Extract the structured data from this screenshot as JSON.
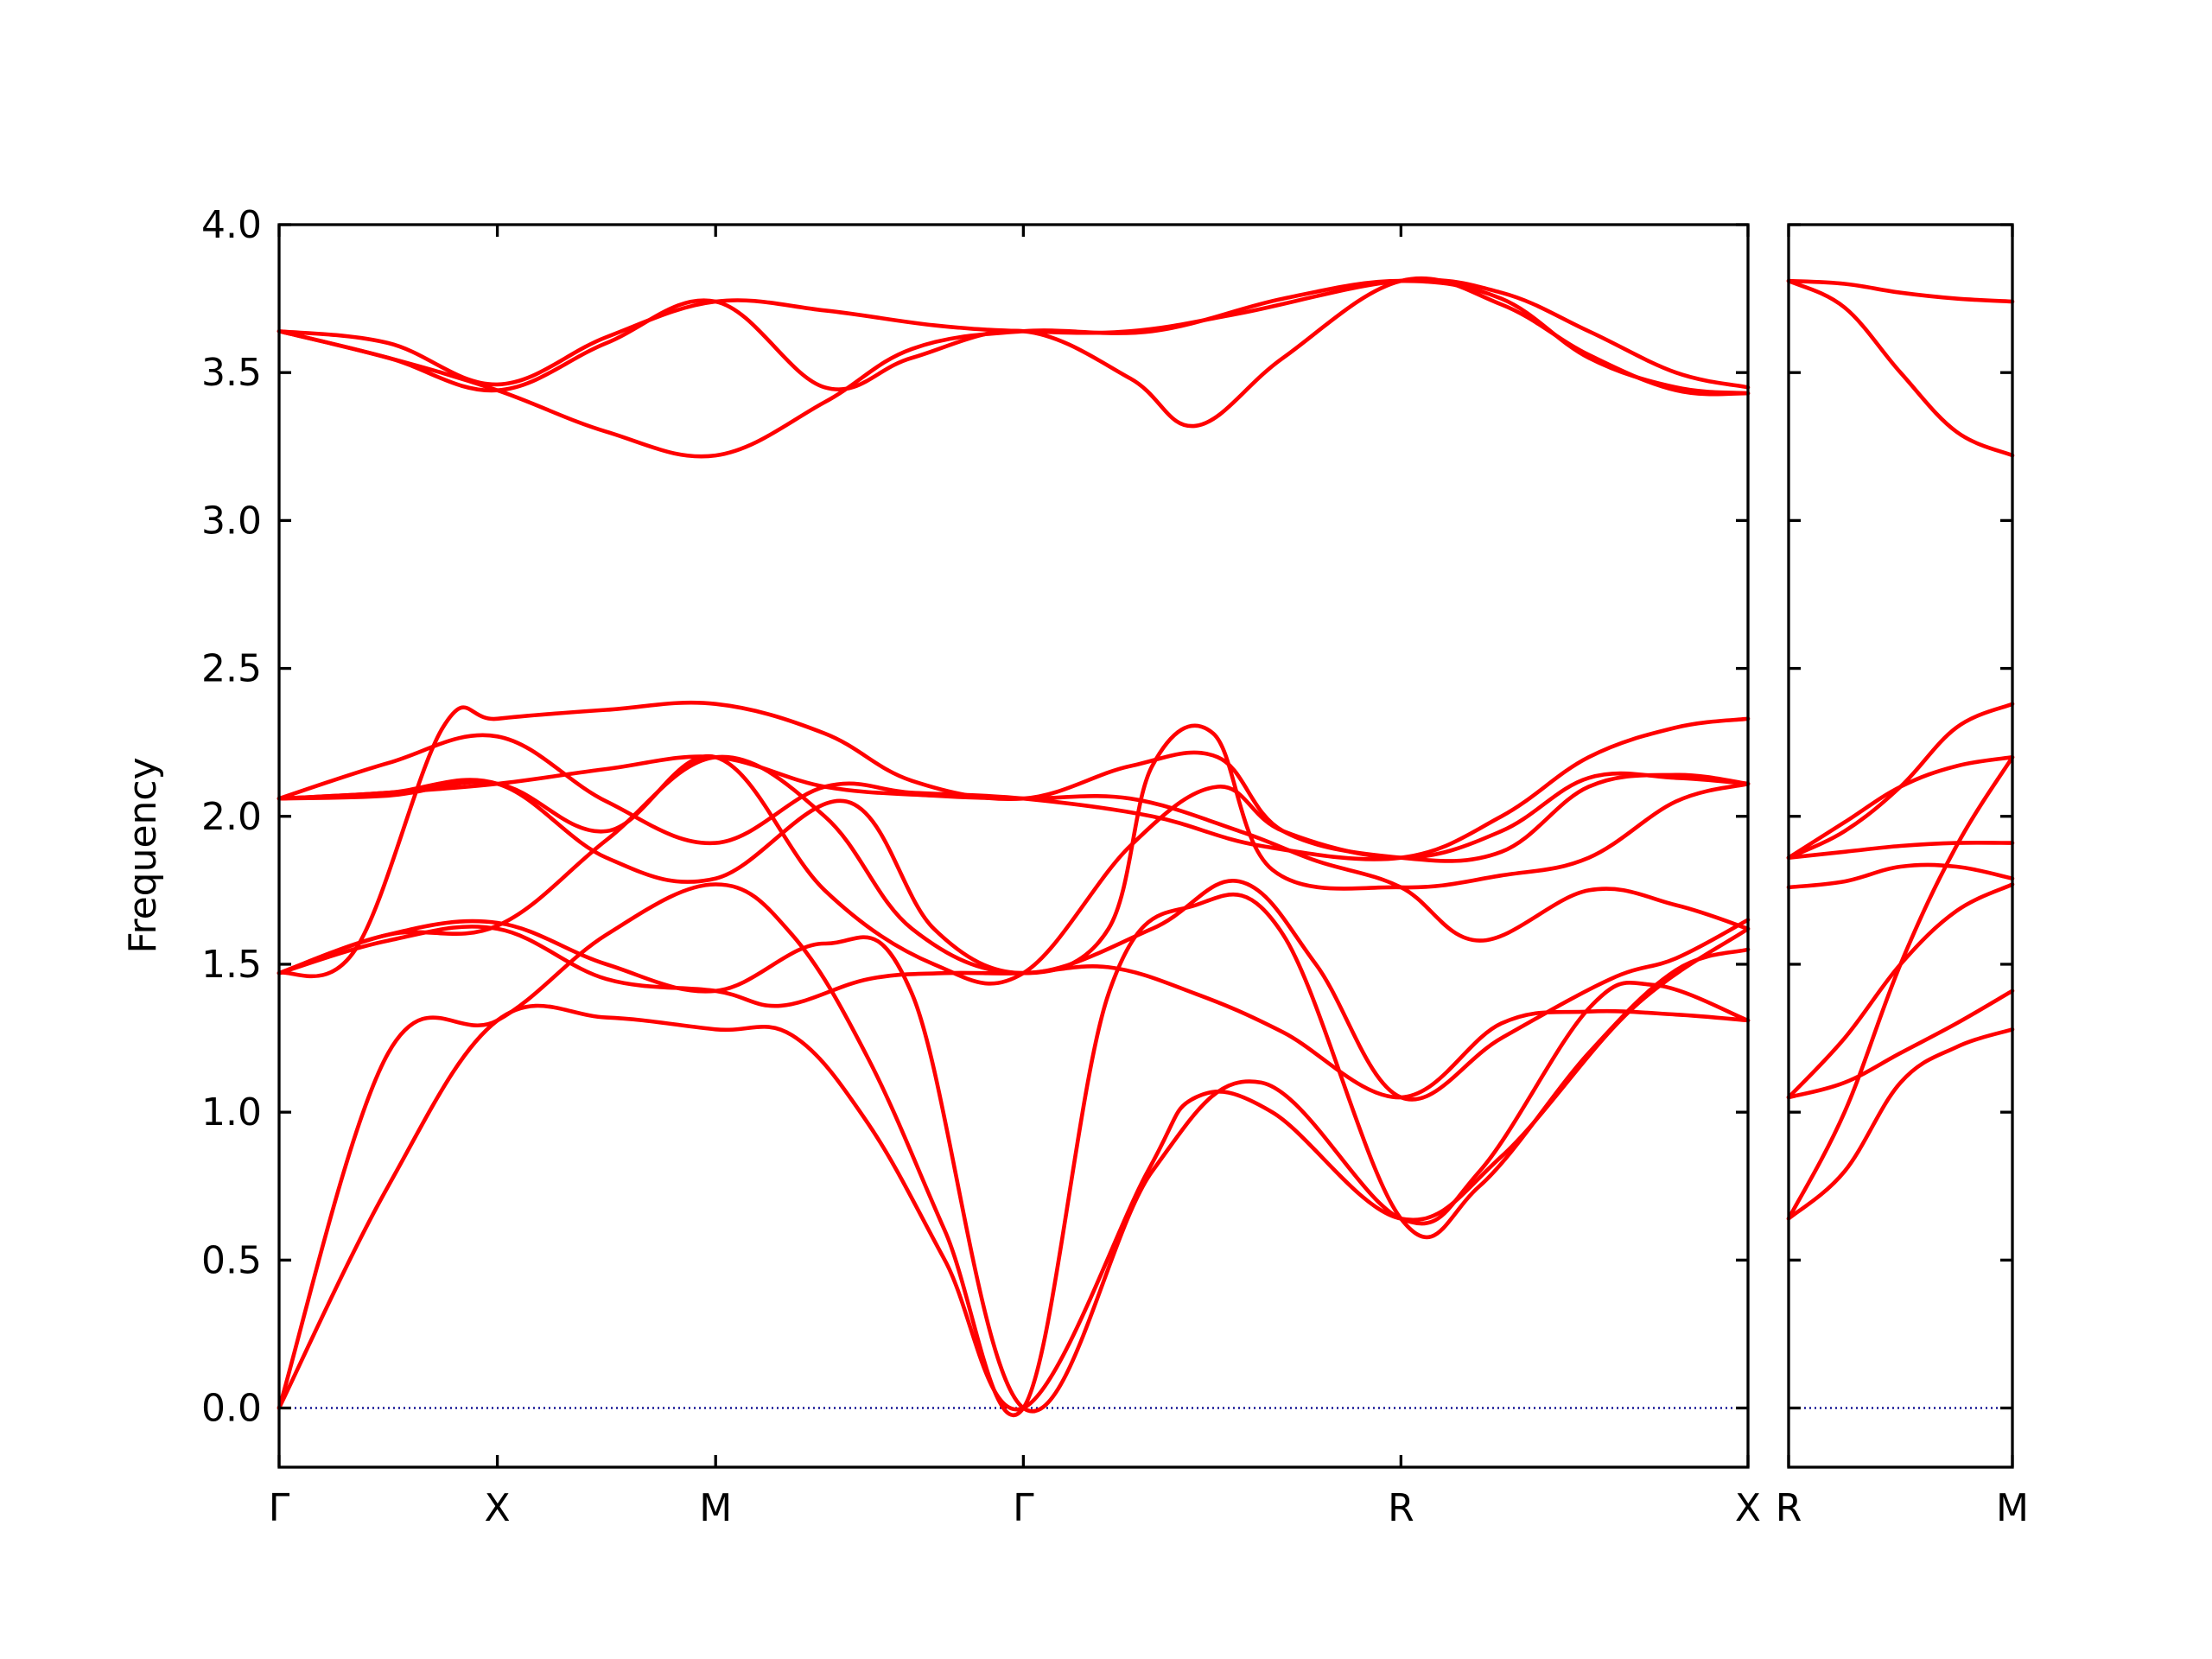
{
  "chart_data": {
    "type": "line",
    "title": "",
    "ylabel": "Frequency",
    "ylim": [
      -0.2,
      4.0
    ],
    "yticks": [
      0.0,
      0.5,
      1.0,
      1.5,
      2.0,
      2.5,
      3.0,
      3.5,
      4.0
    ],
    "ytick_labels": [
      "0.0",
      "0.5",
      "1.0",
      "1.5",
      "2.0",
      "2.5",
      "3.0",
      "3.5",
      "4.0"
    ],
    "grid": false,
    "legend": "none",
    "colors": {
      "bands": "#ff0000",
      "zero_line": "#00008b",
      "frame": "#000000"
    },
    "panels": [
      {
        "name": "main",
        "xlim": [
          0,
          6.73
        ],
        "high_symmetry_points": [
          {
            "label": "Γ",
            "x": 0.0
          },
          {
            "label": "X",
            "x": 1.0
          },
          {
            "label": "M",
            "x": 2.0
          },
          {
            "label": "Γ",
            "x": 3.41
          },
          {
            "label": "R",
            "x": 5.14
          },
          {
            "label": "X",
            "x": 6.73
          }
        ],
        "series": [
          {
            "x": [
              0,
              0.5,
              1.0,
              1.5,
              2.0,
              2.35,
              2.7,
              3.05,
              3.41,
              3.98,
              4.2,
              4.55,
              5.14,
              5.6,
              6.2,
              6.73
            ],
            "y": [
              0.0,
              0.75,
              1.31,
              1.32,
              1.28,
              1.26,
              0.96,
              0.5,
              0.0,
              0.8,
              1.05,
              1.0,
              0.64,
              0.85,
              1.35,
              1.62
            ]
          },
          {
            "x": [
              0,
              0.5,
              1.0,
              1.5,
              2.0,
              2.35,
              2.7,
              3.05,
              3.41,
              3.8,
              4.2,
              4.6,
              5.14,
              5.5,
              6.0,
              6.4,
              6.73
            ],
            "y": [
              0.0,
              1.2,
              1.31,
              1.6,
              1.77,
              1.6,
              1.18,
              0.6,
              0.0,
              1.4,
              1.7,
              1.6,
              0.64,
              0.75,
              1.2,
              1.48,
              1.55
            ]
          },
          {
            "x": [
              0,
              0.5,
              1.0,
              1.5,
              2.0,
              2.3,
              2.7,
              3.05,
              3.41,
              3.8,
              4.2,
              4.6,
              5.14,
              5.6,
              6.0,
              6.4,
              6.73
            ],
            "y": [
              1.47,
              1.58,
              1.62,
              1.45,
              1.41,
              1.36,
              1.45,
              1.47,
              1.47,
              1.49,
              1.4,
              1.27,
              1.05,
              1.3,
              1.34,
              1.33,
              1.31
            ]
          },
          {
            "x": [
              0,
              0.5,
              1.0,
              1.5,
              2.0,
              2.5,
              2.9,
              3.41,
              4.0,
              4.5,
              5.14,
              5.5,
              6.0,
              6.3,
              6.73
            ],
            "y": [
              1.47,
              1.6,
              1.64,
              1.5,
              1.41,
              1.57,
              1.4,
              0.0,
              0.8,
              1.1,
              0.64,
              0.8,
              1.35,
              1.43,
              1.31
            ]
          },
          {
            "x": [
              0,
              0.35,
              0.75,
              1.0,
              1.5,
              2.0,
              2.5,
              2.9,
              3.41,
              3.9,
              4.3,
              4.6,
              5.14,
              5.6,
              6.0,
              6.4,
              6.73
            ],
            "y": [
              1.47,
              1.55,
              2.3,
              2.33,
              2.36,
              2.38,
              2.28,
              2.12,
              2.06,
              2.17,
              2.2,
              1.95,
              1.86,
              1.88,
              2.1,
              2.14,
              2.11
            ]
          },
          {
            "x": [
              0,
              0.5,
              1.0,
              1.5,
              2.0,
              2.5,
              2.9,
              3.41,
              4.0,
              4.5,
              5.14,
              5.6,
              6.0,
              6.4,
              6.73
            ],
            "y": [
              2.06,
              2.18,
              2.27,
              2.05,
              1.91,
              2.1,
              2.08,
              2.06,
              2.0,
              1.9,
              1.86,
              2.0,
              2.2,
              2.3,
              2.33
            ]
          },
          {
            "x": [
              0,
              0.5,
              1.0,
              1.5,
              2.0,
              2.6,
              3.0,
              3.41,
              3.8,
              4.0,
              4.28,
              4.55,
              5.14,
              5.6,
              6.0,
              6.4,
              6.73
            ],
            "y": [
              2.06,
              2.08,
              2.11,
              1.86,
              1.79,
              2.05,
              1.62,
              1.47,
              1.62,
              2.17,
              2.28,
              1.82,
              1.76,
              1.8,
              1.86,
              2.05,
              2.11
            ]
          },
          {
            "x": [
              0,
              0.5,
              1.0,
              1.5,
              2.0,
              2.5,
              3.0,
              3.41,
              3.9,
              4.3,
              4.6,
              5.14,
              5.6,
              6.0,
              6.4,
              6.73
            ],
            "y": [
              2.06,
              2.07,
              2.11,
              1.95,
              2.2,
              1.75,
              1.5,
              1.47,
              1.9,
              2.1,
              1.95,
              1.86,
              1.95,
              2.13,
              2.13,
              2.11
            ]
          },
          {
            "x": [
              0,
              0.5,
              1.0,
              1.5,
              2.0,
              2.5,
              3.0,
              3.41,
              3.9,
              4.4,
              4.75,
              5.14,
              5.5,
              6.0,
              6.4,
              6.73
            ],
            "y": [
              2.06,
              2.08,
              2.11,
              2.16,
              2.2,
              2.1,
              2.07,
              2.06,
              2.06,
              1.95,
              1.85,
              1.76,
              1.58,
              1.75,
              1.7,
              1.62
            ]
          },
          {
            "x": [
              0,
              0.5,
              1.0,
              1.5,
              2.0,
              2.5,
              2.9,
              3.41,
              4.0,
              4.4,
              4.75,
              5.14,
              5.6,
              6.1,
              6.4,
              6.73
            ],
            "y": [
              1.47,
              1.6,
              1.63,
              1.92,
              2.2,
              2.0,
              1.62,
              1.47,
              1.62,
              1.78,
              1.5,
              1.05,
              1.25,
              1.45,
              1.52,
              1.65
            ]
          },
          {
            "x": [
              0,
              0.5,
              1.0,
              1.5,
              2.0,
              2.5,
              2.9,
              3.41,
              4.0,
              4.6,
              5.14,
              5.6,
              6.0,
              6.4,
              6.73
            ],
            "y": [
              3.64,
              3.55,
              3.44,
              3.3,
              3.22,
              3.4,
              3.58,
              3.64,
              3.64,
              3.75,
              3.81,
              3.75,
              3.55,
              3.45,
              3.43
            ]
          },
          {
            "x": [
              0,
              0.5,
              1.0,
              1.5,
              2.0,
              2.5,
              2.9,
              3.41,
              3.9,
              4.2,
              4.6,
              5.14,
              5.6,
              6.0,
              6.4,
              6.73
            ],
            "y": [
              3.64,
              3.55,
              3.44,
              3.6,
              3.74,
              3.45,
              3.55,
              3.64,
              3.48,
              3.32,
              3.55,
              3.81,
              3.73,
              3.56,
              3.44,
              3.43
            ]
          },
          {
            "x": [
              0,
              0.5,
              1.0,
              1.5,
              2.0,
              2.5,
              3.0,
              3.41,
              3.9,
              4.4,
              5.14,
              5.6,
              6.0,
              6.4,
              6.73
            ],
            "y": [
              3.64,
              3.6,
              3.46,
              3.62,
              3.74,
              3.71,
              3.66,
              3.64,
              3.64,
              3.7,
              3.81,
              3.77,
              3.64,
              3.5,
              3.45
            ]
          }
        ]
      },
      {
        "name": "secondary",
        "xlim": [
          0,
          1.0
        ],
        "high_symmetry_points": [
          {
            "label": "R",
            "x": 0.0
          },
          {
            "label": "M",
            "x": 1.0
          }
        ],
        "series": [
          {
            "x": [
              0,
              0.25,
              0.5,
              0.75,
              1.0
            ],
            "y": [
              3.81,
              3.8,
              3.77,
              3.75,
              3.74
            ]
          },
          {
            "x": [
              0,
              0.25,
              0.5,
              0.75,
              1.0
            ],
            "y": [
              3.81,
              3.72,
              3.5,
              3.3,
              3.22
            ]
          },
          {
            "x": [
              0,
              0.25,
              0.5,
              0.75,
              1.0
            ],
            "y": [
              1.86,
              1.95,
              2.1,
              2.3,
              2.38
            ]
          },
          {
            "x": [
              0,
              0.25,
              0.5,
              0.75,
              1.0
            ],
            "y": [
              1.86,
              1.98,
              2.1,
              2.17,
              2.2
            ]
          },
          {
            "x": [
              0,
              0.25,
              0.5,
              0.75,
              1.0
            ],
            "y": [
              1.86,
              1.88,
              1.9,
              1.91,
              1.91
            ]
          },
          {
            "x": [
              0,
              0.25,
              0.5,
              0.75,
              1.0
            ],
            "y": [
              1.76,
              1.78,
              1.83,
              1.83,
              1.79
            ]
          },
          {
            "x": [
              0,
              0.25,
              0.5,
              0.75,
              1.0
            ],
            "y": [
              1.05,
              1.25,
              1.5,
              1.68,
              1.77
            ]
          },
          {
            "x": [
              0,
              0.25,
              0.5,
              0.75,
              1.0
            ],
            "y": [
              1.05,
              1.1,
              1.2,
              1.3,
              1.41
            ]
          },
          {
            "x": [
              0,
              0.25,
              0.5,
              0.75,
              1.0
            ],
            "y": [
              0.64,
              1.0,
              1.5,
              1.9,
              2.2
            ]
          },
          {
            "x": [
              0,
              0.25,
              0.5,
              0.75,
              1.0
            ],
            "y": [
              0.64,
              0.8,
              1.1,
              1.22,
              1.28
            ]
          }
        ]
      }
    ]
  }
}
